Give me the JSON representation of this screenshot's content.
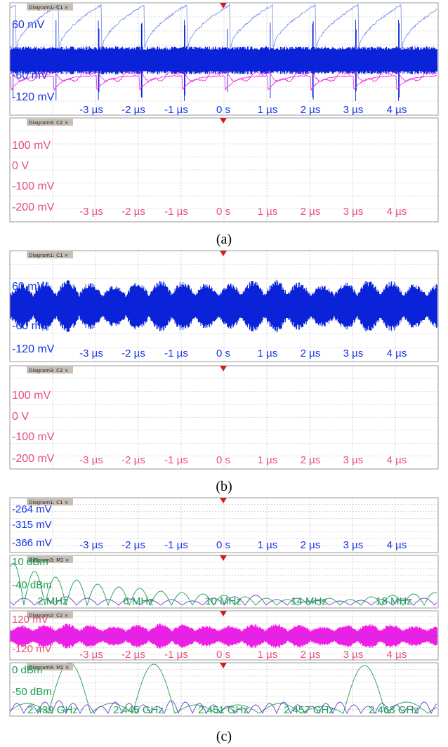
{
  "figure": {
    "captions": [
      "(a)",
      "(b)",
      "(c)"
    ]
  },
  "colors": {
    "blue": "#0a22d8",
    "magenta": "#ee1ee6",
    "pinkText": "#e8507a",
    "green": "#1aa050",
    "purple": "#6a3fd0",
    "grid": "#b8b8b8",
    "tabBg": "#c8bfb6",
    "marker": "#d41c1c"
  },
  "chart_data": [
    {
      "panel": "a",
      "tab": "Diagram1: C1",
      "type": "line",
      "signal": "dense carrier with periodic spikes",
      "ylabels": [
        "60 mV",
        "-60 mV",
        "-120 mV"
      ],
      "xlabels": [
        "-3 µs",
        "-2 µs",
        "-1 µs",
        "0 s",
        "1 µs",
        "2 µs",
        "3 µs",
        "4 µs"
      ],
      "x": [
        -3,
        -2,
        -1,
        0,
        1,
        2,
        3,
        4
      ],
      "x_unit": "µs"
    },
    {
      "panel": "a",
      "tab": "Diagram3: C2",
      "type": "line",
      "signal": "sawtooth recovery pattern near -170 mV",
      "ylabels": [
        "100 mV",
        "0 V",
        "-100 mV",
        "-200 mV"
      ],
      "xlabels": [
        "-3 µs",
        "-2 µs",
        "-1 µs",
        "0 s",
        "1 µs",
        "2 µs",
        "3 µs",
        "4 µs"
      ],
      "x": [
        -3,
        -2,
        -1,
        0,
        1,
        2,
        3,
        4
      ],
      "x_unit": "µs"
    },
    {
      "panel": "b",
      "tab": "Diagram1: C1",
      "type": "line",
      "signal": "modulated carrier with burst envelope",
      "ylabels": [
        "60 mV",
        "-60 mV",
        "-120 mV"
      ],
      "xlabels": [
        "-3 µs",
        "-2 µs",
        "-1 µs",
        "0 s",
        "1 µs",
        "2 µs",
        "3 µs",
        "4 µs"
      ],
      "x": [
        -3,
        -2,
        -1,
        0,
        1,
        2,
        3,
        4
      ],
      "x_unit": "µs"
    },
    {
      "panel": "b",
      "tab": "Diagram3: C2",
      "type": "line",
      "signal": "wavy pattern near -150 mV",
      "ylabels": [
        "100 mV",
        "0 V",
        "-100 mV",
        "-200 mV"
      ],
      "xlabels": [
        "-3 µs",
        "-2 µs",
        "-1 µs",
        "0 s",
        "1 µs",
        "2 µs",
        "3 µs",
        "4 µs"
      ],
      "x": [
        -3,
        -2,
        -1,
        0,
        1,
        2,
        3,
        4
      ],
      "x_unit": "µs"
    },
    {
      "panel": "c",
      "tab": "Diagram1: C1",
      "type": "line",
      "signal": "sawtooth",
      "ylabels": [
        "-264 mV",
        "-315 mV",
        "-366 mV"
      ],
      "xlabels": [
        "-3 µs",
        "-2 µs",
        "-1 µs",
        "0 s",
        "1 µs",
        "2 µs",
        "3 µs",
        "4 µs"
      ],
      "x": [
        -3,
        -2,
        -1,
        0,
        1,
        2,
        3,
        4
      ],
      "x_unit": "µs"
    },
    {
      "panel": "c",
      "tab": "Diagram3: M1",
      "type": "line",
      "signal": "spectrum with sinc lobes",
      "ylabels": [
        "10 dBm",
        "-40 dBm"
      ],
      "xlabels": [
        "2 MHz",
        "6 MHz",
        "10 MHz",
        "14 MHz",
        "18 MHz"
      ],
      "x": [
        2,
        6,
        10,
        14,
        18
      ],
      "x_unit": "MHz"
    },
    {
      "panel": "c",
      "tab": "Diagram2: C2",
      "type": "line",
      "signal": "dense modulated carrier",
      "ylabels": [
        "120 mV",
        "-120 mV"
      ],
      "xlabels": [
        "-3 µs",
        "-2 µs",
        "-1 µs",
        "0 s",
        "1 µs",
        "2 µs",
        "3 µs",
        "4 µs"
      ],
      "x": [
        -3,
        -2,
        -1,
        0,
        1,
        2,
        3,
        4
      ],
      "x_unit": "µs"
    },
    {
      "panel": "c",
      "tab": "Diagram4: M2",
      "type": "line",
      "signal": "RF spectrum with lobes",
      "ylabels": [
        "0 dBm",
        "-50 dBm"
      ],
      "xlabels": [
        "2.439 GHz",
        "2.445 GHz",
        "2.451 GHz",
        "2.457 GHz",
        "2.463 GHz"
      ],
      "x": [
        2.439,
        2.445,
        2.451,
        2.457,
        2.463
      ],
      "x_unit": "GHz"
    }
  ]
}
